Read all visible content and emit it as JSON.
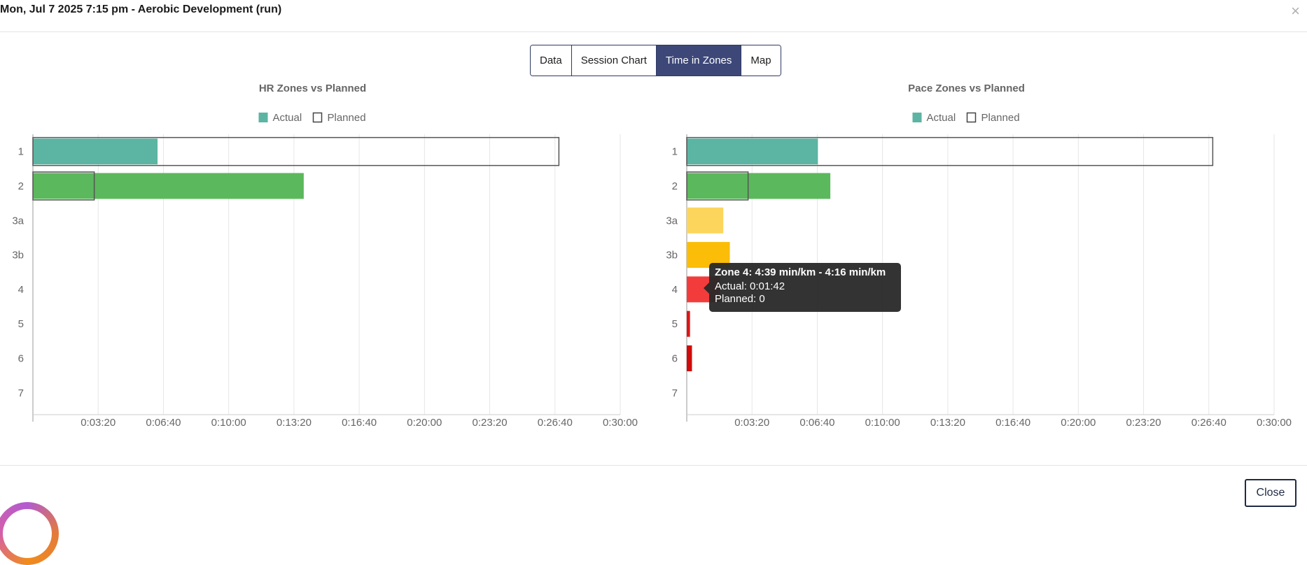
{
  "header": {
    "title": "Mon, Jul 7 2025 7:15 pm - Aerobic Development (run)",
    "close_glyph": "×"
  },
  "tabs": [
    {
      "label": "Data",
      "active": false
    },
    {
      "label": "Session Chart",
      "active": false
    },
    {
      "label": "Time in Zones",
      "active": true
    },
    {
      "label": "Map",
      "active": false
    }
  ],
  "legend": {
    "actual": "Actual",
    "planned": "Planned"
  },
  "tooltip": {
    "title": "Zone 4: 4:39 min/km - 4:16 min/km",
    "actual": "Actual: 0:01:42",
    "planned": "Planned: 0"
  },
  "footer": {
    "close_label": "Close"
  },
  "colors": {
    "tab_active_bg": "#3d4778",
    "zone_1": "#5bb5a2",
    "zone_2": "#5cb85c",
    "zone_3a": "#fcd55c",
    "zone_3b": "#fbbd08",
    "zone_4": "#f23c3c",
    "zone_5": "#e01414",
    "zone_6": "#d10a0a",
    "zone_7": "#b00000",
    "planned_border": "#555555"
  },
  "chart_data": [
    {
      "type": "bar",
      "orientation": "horizontal",
      "title": "HR Zones vs Planned",
      "categories": [
        "1",
        "2",
        "3a",
        "3b",
        "4",
        "5",
        "6",
        "7"
      ],
      "series": [
        {
          "name": "Actual",
          "values_seconds": [
            382,
            830,
            0,
            0,
            0,
            0,
            0,
            0
          ]
        },
        {
          "name": "Planned",
          "values_seconds": [
            1612,
            188,
            0,
            0,
            0,
            0,
            0,
            0
          ]
        }
      ],
      "x_tick_labels": [
        "0:03:20",
        "0:06:40",
        "0:10:00",
        "0:13:20",
        "0:16:40",
        "0:20:00",
        "0:23:20",
        "0:26:40",
        "0:30:00"
      ],
      "x_ticks_seconds": [
        200,
        400,
        600,
        800,
        1000,
        1200,
        1400,
        1600,
        1800
      ],
      "xlim_seconds": [
        0,
        1800
      ],
      "grid": true,
      "legend_position": "top-center"
    },
    {
      "type": "bar",
      "orientation": "horizontal",
      "title": "Pace Zones vs Planned",
      "categories": [
        "1",
        "2",
        "3a",
        "3b",
        "4",
        "5",
        "6",
        "7"
      ],
      "series": [
        {
          "name": "Actual",
          "values_seconds": [
            402,
            440,
            112,
            132,
            102,
            10,
            16,
            0
          ]
        },
        {
          "name": "Planned",
          "values_seconds": [
            1612,
            188,
            0,
            0,
            0,
            0,
            0,
            0
          ]
        }
      ],
      "x_tick_labels": [
        "0:03:20",
        "0:06:40",
        "0:10:00",
        "0:13:20",
        "0:16:40",
        "0:20:00",
        "0:23:20",
        "0:26:40",
        "0:30:00"
      ],
      "x_ticks_seconds": [
        200,
        400,
        600,
        800,
        1000,
        1200,
        1400,
        1600,
        1800
      ],
      "xlim_seconds": [
        0,
        1800
      ],
      "grid": true,
      "legend_position": "top-center"
    }
  ]
}
